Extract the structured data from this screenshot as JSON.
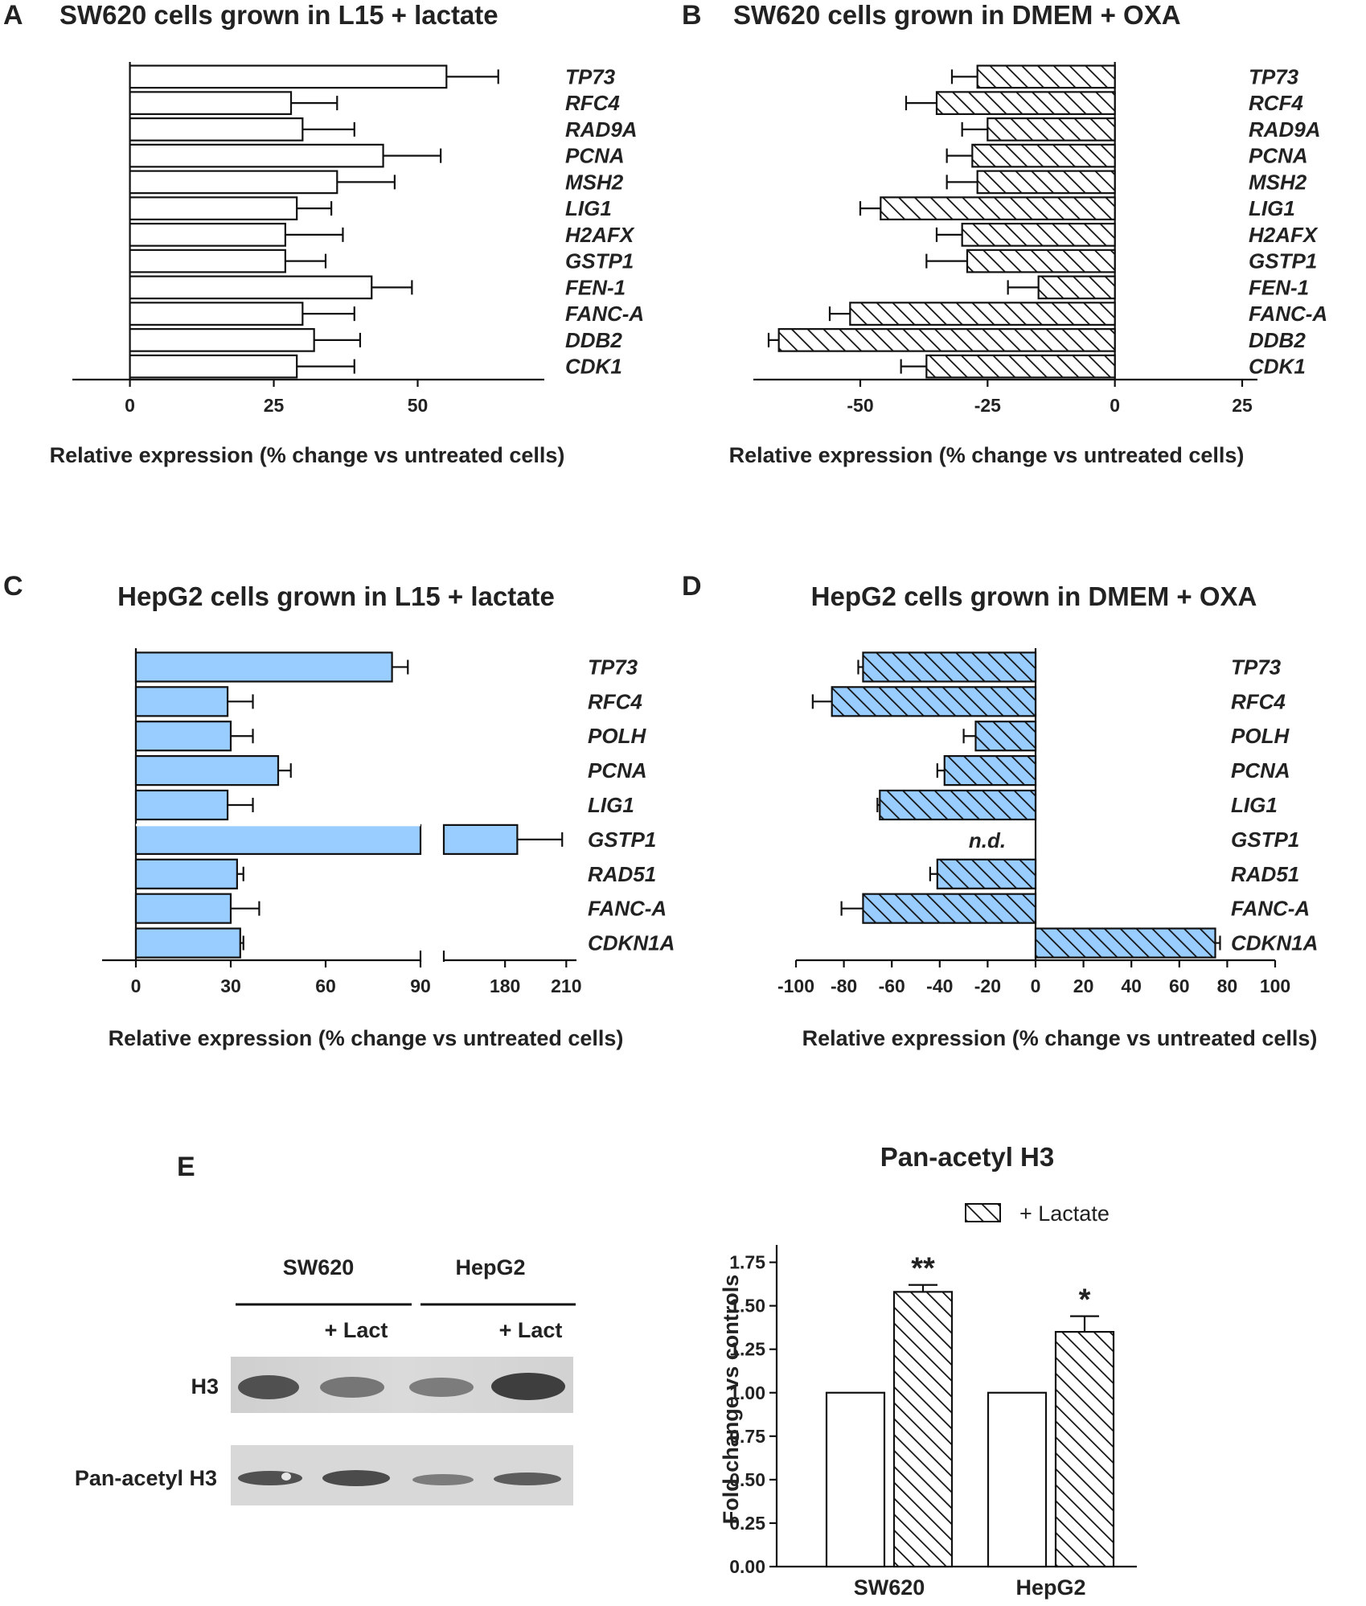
{
  "figure": {
    "chart_data": [
      {
        "panel": "A",
        "type": "bar",
        "orientation": "horizontal",
        "title": "SW620 cells grown in L15 + lactate",
        "xlabel": "Relative expression (% change vs untreated cells)",
        "categories": [
          "TP73",
          "RFC4",
          "RAD9A",
          "PCNA",
          "MSH2",
          "LIG1",
          "H2AFX",
          "GSTP1",
          "FEN-1",
          "FANC-A",
          "DDB2",
          "CDK1"
        ],
        "values": [
          55,
          28,
          30,
          44,
          36,
          29,
          27,
          27,
          42,
          30,
          32,
          29
        ],
        "errors": [
          9,
          8,
          9,
          10,
          10,
          6,
          10,
          7,
          7,
          9,
          8,
          10
        ],
        "fill": "white",
        "xlim": [
          -10,
          72
        ],
        "xticks": [
          0,
          25,
          50
        ],
        "xtick_labels": [
          "0",
          "25",
          "50"
        ]
      },
      {
        "panel": "B",
        "type": "bar",
        "orientation": "horizontal",
        "title": "SW620 cells grown in DMEM + OXA",
        "xlabel": "Relative expression (% change vs untreated cells)",
        "categories": [
          "TP73",
          "RCF4",
          "RAD9A",
          "PCNA",
          "MSH2",
          "LIG1",
          "H2AFX",
          "GSTP1",
          "FEN-1",
          "FANC-A",
          "DDB2",
          "CDK1"
        ],
        "values": [
          -27,
          -35,
          -25,
          -28,
          -27,
          -46,
          -30,
          -29,
          -15,
          -52,
          -66,
          -37
        ],
        "errors": [
          5,
          6,
          5,
          5,
          6,
          4,
          5,
          8,
          6,
          4,
          2,
          5
        ],
        "fill": "hatch-white",
        "xlim": [
          -71,
          28
        ],
        "xticks": [
          -50,
          -25,
          0,
          25
        ],
        "xtick_labels": [
          "-50",
          "-25",
          "0",
          "25"
        ]
      },
      {
        "panel": "C",
        "type": "bar",
        "orientation": "horizontal",
        "title": "HepG2 cells grown in L15 + lactate",
        "xlabel": "Relative expression (% change vs untreated cells)",
        "categories": [
          "TP73",
          "RFC4",
          "POLH",
          "PCNA",
          "LIG1",
          "GSTP1",
          "RAD51",
          "FANC-A",
          "CDKN1A"
        ],
        "values": [
          81,
          29,
          30,
          45,
          29,
          186,
          32,
          30,
          33
        ],
        "errors": [
          5,
          8,
          7,
          4,
          8,
          22,
          2,
          9,
          1
        ],
        "fill": "#99CCFF",
        "axis_break": {
          "lower": [
            0,
            90
          ],
          "upper": [
            150,
            215
          ]
        },
        "xticks": [
          0,
          30,
          60,
          90,
          180,
          210
        ],
        "xtick_labels": [
          "0",
          "30",
          "60",
          "90",
          "180",
          "210"
        ]
      },
      {
        "panel": "D",
        "type": "bar",
        "orientation": "horizontal",
        "title": "HepG2 cells grown in DMEM + OXA",
        "xlabel": "Relative expression (% change vs untreated cells)",
        "categories": [
          "TP73",
          "RFC4",
          "POLH",
          "PCNA",
          "LIG1",
          "GSTP1",
          "RAD51",
          "FANC-A",
          "CDKN1A"
        ],
        "values": [
          -72,
          -85,
          -25,
          -38,
          -65,
          null,
          -41,
          -72,
          75
        ],
        "errors": [
          2,
          8,
          5,
          3,
          1,
          null,
          3,
          9,
          2
        ],
        "not_detected_label": "n.d.",
        "fill": "hatch-#99CCFF",
        "xlim": [
          -100,
          100
        ],
        "xticks": [
          -100,
          -80,
          -60,
          -40,
          -20,
          0,
          20,
          40,
          60,
          80,
          100
        ],
        "xtick_labels": [
          "-100",
          "-80",
          "-60",
          "-40",
          "-20",
          "0",
          "20",
          "40",
          "60",
          "80",
          "100"
        ]
      },
      {
        "panel": "E",
        "type": "bar",
        "title": "Pan-acetyl H3",
        "ylabel": "Fold change vs controls",
        "categories": [
          "SW620",
          "HepG2"
        ],
        "series": [
          {
            "fill": "white",
            "values": [
              1.0,
              1.0
            ],
            "errors": [
              0,
              0
            ],
            "significance": [
              "",
              ""
            ]
          },
          {
            "name": "+ Lactate",
            "fill": "hatch-white",
            "values": [
              1.58,
              1.35
            ],
            "errors": [
              0.04,
              0.09
            ],
            "significance": [
              "**",
              "*"
            ]
          }
        ],
        "ylim": [
          0,
          1.85
        ],
        "yticks": [
          0.0,
          0.25,
          0.5,
          0.75,
          1.0,
          1.25,
          1.5,
          1.75
        ],
        "ytick_labels": [
          "0.00",
          "0.25",
          "0.50",
          "0.75",
          "1.00",
          "1.25",
          "1.50",
          "1.75"
        ],
        "legend_position": "top-right"
      }
    ],
    "panel_labels": [
      "A",
      "B",
      "C",
      "D",
      "E"
    ],
    "western_blot": {
      "groups": [
        "SW620",
        "HepG2"
      ],
      "lane_labels": [
        "",
        "+ Lact",
        "",
        "+ Lact"
      ],
      "rows": [
        "H3",
        "Pan-acetyl H3"
      ],
      "colors": {
        "background": "#d9d9d9",
        "band": "#3a3a3a"
      }
    }
  }
}
